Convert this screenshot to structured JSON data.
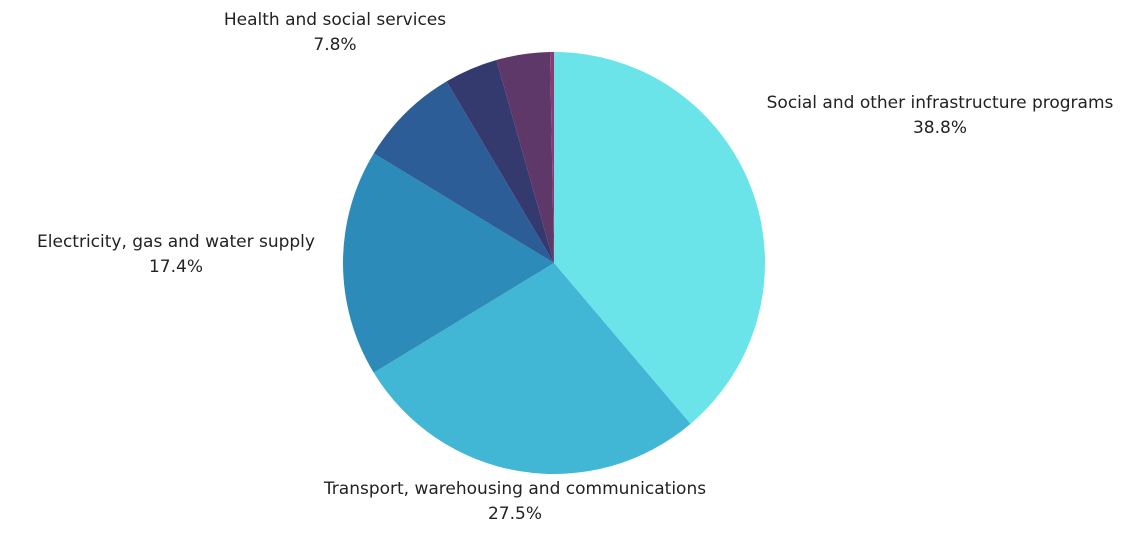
{
  "chart_data": {
    "type": "pie",
    "title": "",
    "start_angle_deg": 0,
    "direction": "clockwise",
    "slices": [
      {
        "label": "Social and other infrastructure programs",
        "value": 38.8,
        "value_label": "38.8%",
        "color": "#6ae4e8",
        "show_label": true
      },
      {
        "label": "Transport, warehousing and communications",
        "value": 27.5,
        "value_label": "27.5%",
        "color": "#42b7d5",
        "show_label": true
      },
      {
        "label": "Electricity, gas and water supply",
        "value": 17.4,
        "value_label": "17.4%",
        "color": "#2d8bb9",
        "show_label": true
      },
      {
        "label": "Health and social services",
        "value": 7.8,
        "value_label": "7.8%",
        "color": "#2c5d96",
        "show_label": true
      },
      {
        "label": "",
        "value": 4.1,
        "value_label": "",
        "color": "#353a6e",
        "show_label": false
      },
      {
        "label": "",
        "value": 4.1,
        "value_label": "",
        "color": "#5e3868",
        "show_label": false
      },
      {
        "label": "",
        "value": 0.3,
        "value_label": "",
        "color": "#8a3a70",
        "show_label": false
      }
    ]
  }
}
